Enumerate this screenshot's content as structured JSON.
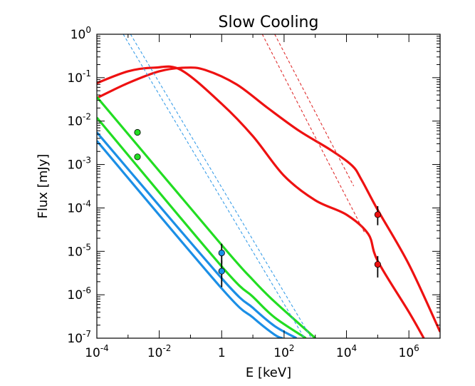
{
  "chart_data": {
    "type": "line",
    "title": "Slow Cooling",
    "xlabel": "E [keV]",
    "ylabel": "Flux [mJy]",
    "xscale": "log",
    "yscale": "log",
    "xlim": [
      0.0001,
      10000000
    ],
    "ylim": [
      1e-07,
      1
    ],
    "xticks": [
      {
        "base": "10",
        "exp": "-4",
        "value": 0.0001
      },
      {
        "base": "10",
        "exp": "-2",
        "value": 0.01
      },
      {
        "base": "1",
        "exp": "",
        "value": 1
      },
      {
        "base": "10",
        "exp": "2",
        "value": 100
      },
      {
        "base": "10",
        "exp": "4",
        "value": 10000
      },
      {
        "base": "10",
        "exp": "6",
        "value": 1000000
      }
    ],
    "yticks": [
      {
        "base": "10",
        "exp": "0",
        "value": 1
      },
      {
        "base": "10",
        "exp": "-1",
        "value": 0.1
      },
      {
        "base": "10",
        "exp": "-2",
        "value": 0.01
      },
      {
        "base": "10",
        "exp": "-3",
        "value": 0.001
      },
      {
        "base": "10",
        "exp": "-4",
        "value": 0.0001
      },
      {
        "base": "10",
        "exp": "-5",
        "value": 1e-05
      },
      {
        "base": "10",
        "exp": "-6",
        "value": 1e-06
      },
      {
        "base": "10",
        "exp": "-7",
        "value": 1e-07
      }
    ],
    "colors": {
      "red": "#ee1111",
      "green": "#22dd22",
      "blue": "#1b8fe6",
      "dashed_red": "#e03030",
      "dashed_blue": "#3a9ee8"
    },
    "series": [
      {
        "name": "red-upper",
        "color": "red",
        "style": "solid",
        "points": [
          [
            0.0001,
            0.034
          ],
          [
            0.001,
            0.075
          ],
          [
            0.01,
            0.14
          ],
          [
            0.07,
            0.17
          ],
          [
            0.3,
            0.15
          ],
          [
            3,
            0.07
          ],
          [
            30,
            0.02
          ],
          [
            300,
            0.006
          ],
          [
            3000,
            0.0022
          ],
          [
            15000,
            0.00095
          ],
          [
            30000,
            0.00045
          ],
          [
            100000,
            9e-05
          ],
          [
            1000000,
            5e-06
          ],
          [
            10000000,
            1.4e-07
          ]
        ]
      },
      {
        "name": "red-lower",
        "color": "red",
        "style": "solid",
        "points": [
          [
            0.0001,
            0.075
          ],
          [
            0.001,
            0.14
          ],
          [
            0.007,
            0.17
          ],
          [
            0.05,
            0.15
          ],
          [
            1,
            0.025
          ],
          [
            10,
            0.0045
          ],
          [
            100,
            0.00055
          ],
          [
            1000,
            0.00015
          ],
          [
            10000,
            7e-05
          ],
          [
            50000,
            2.5e-05
          ],
          [
            100000,
            6e-06
          ],
          [
            1000000,
            4e-07
          ],
          [
            3000000,
            1e-07
          ]
        ]
      },
      {
        "name": "green-upper",
        "color": "green",
        "style": "solid",
        "points": [
          [
            0.0001,
            0.036
          ],
          [
            1,
            1.4e-05
          ],
          [
            10,
            2.2e-06
          ],
          [
            40,
            8e-07
          ],
          [
            400,
            1.8e-07
          ],
          [
            1000,
            1e-07
          ]
        ]
      },
      {
        "name": "green-lower",
        "color": "green",
        "style": "solid",
        "points": [
          [
            0.0001,
            0.012
          ],
          [
            1,
            4.5e-06
          ],
          [
            10,
            9e-07
          ],
          [
            50,
            3e-07
          ],
          [
            500,
            1e-07
          ]
        ]
      },
      {
        "name": "blue-upper",
        "color": "blue",
        "style": "solid",
        "points": [
          [
            0.0001,
            0.0055
          ],
          [
            1,
            2.4e-06
          ],
          [
            10,
            5e-07
          ],
          [
            50,
            1.9e-07
          ],
          [
            250,
            1e-07
          ]
        ]
      },
      {
        "name": "blue-lower",
        "color": "blue",
        "style": "solid",
        "points": [
          [
            0.0001,
            0.0035
          ],
          [
            1,
            1.4e-06
          ],
          [
            10,
            3e-07
          ],
          [
            50,
            1.2e-07
          ],
          [
            90,
            1e-07
          ]
        ]
      },
      {
        "name": "red-dashed-upper",
        "color": "dashed_red",
        "style": "dashed",
        "points": [
          [
            50,
            1
          ],
          [
            17000,
            0.00032
          ]
        ]
      },
      {
        "name": "red-dashed-lower",
        "color": "dashed_red",
        "style": "dashed",
        "points": [
          [
            20,
            1
          ],
          [
            40000,
            2.5e-05
          ]
        ]
      },
      {
        "name": "blue-dashed-upper",
        "color": "dashed_blue",
        "style": "dashed",
        "points": [
          [
            0.0012,
            1
          ],
          [
            750,
            1e-07
          ]
        ]
      },
      {
        "name": "blue-dashed-lower",
        "color": "dashed_blue",
        "style": "dashed",
        "points": [
          [
            0.0007,
            1
          ],
          [
            450,
            1e-07
          ]
        ]
      }
    ],
    "markers": [
      {
        "name": "green-point-upper",
        "color": "green",
        "x": 0.002,
        "y": 0.0055,
        "err": null
      },
      {
        "name": "green-point-lower",
        "color": "green",
        "x": 0.002,
        "y": 0.0015,
        "err": null
      },
      {
        "name": "blue-point-upper",
        "color": "blue",
        "x": 1,
        "y": 9.2e-06,
        "err": [
          5.2e-06,
          1.5e-05
        ]
      },
      {
        "name": "blue-point-lower",
        "color": "blue",
        "x": 1,
        "y": 3.5e-06,
        "err": [
          1.5e-06,
          6.2e-06
        ]
      },
      {
        "name": "red-point-upper",
        "color": "red",
        "x": 100000,
        "y": 7e-05,
        "err": [
          4e-05,
          0.00011
        ]
      },
      {
        "name": "red-point-lower",
        "color": "red",
        "x": 100000,
        "y": 5e-06,
        "err": [
          2.5e-06,
          7.8e-06
        ]
      }
    ]
  }
}
